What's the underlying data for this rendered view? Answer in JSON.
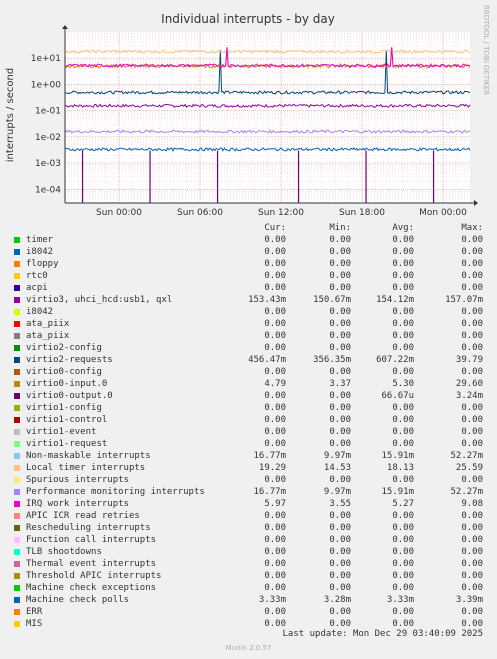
{
  "chart_data": {
    "type": "line",
    "title": "Individual interrupts - by day",
    "ylabel": "interrupts / second",
    "yscale": "log",
    "ylim": [
      3e-05,
      100
    ],
    "y_ticks": [
      {
        "value": 0.0001,
        "label": "1e-04"
      },
      {
        "value": 0.001,
        "label": "1e-03"
      },
      {
        "value": 0.01,
        "label": "1e-02"
      },
      {
        "value": 0.1,
        "label": "1e-01"
      },
      {
        "value": 1,
        "label": "1e+00"
      },
      {
        "value": 10,
        "label": "1e+01"
      }
    ],
    "xlim": [
      0,
      30
    ],
    "x_ticks": [
      {
        "value": 4,
        "label": "Sun 00:00"
      },
      {
        "value": 10,
        "label": "Sun 06:00"
      },
      {
        "value": 16,
        "label": "Sun 12:00"
      },
      {
        "value": 22,
        "label": "Sun 18:00"
      },
      {
        "value": 28,
        "label": "Mon 00:00"
      }
    ],
    "grid": true,
    "legend_headers": [
      "Cur:",
      "Min:",
      "Avg:",
      "Max:"
    ],
    "series": [
      {
        "name": "timer",
        "color": "#00cc00",
        "cur": "0.00",
        "min": "0.00",
        "avg": "0.00",
        "max": "0.00"
      },
      {
        "name": "i8042",
        "color": "#0066b3",
        "cur": "0.00",
        "min": "0.00",
        "avg": "0.00",
        "max": "0.00"
      },
      {
        "name": "floppy",
        "color": "#ff8000",
        "cur": "0.00",
        "min": "0.00",
        "avg": "0.00",
        "max": "0.00"
      },
      {
        "name": "rtc0",
        "color": "#ffcc00",
        "cur": "0.00",
        "min": "0.00",
        "avg": "0.00",
        "max": "0.00"
      },
      {
        "name": "acpi",
        "color": "#330099",
        "cur": "0.00",
        "min": "0.00",
        "avg": "0.00",
        "max": "0.00"
      },
      {
        "name": "virtio3, uhci_hcd:usb1, qxl",
        "color": "#990099",
        "cur": "153.43m",
        "min": "150.67m",
        "avg": "154.12m",
        "max": "157.07m",
        "level": 0.154
      },
      {
        "name": "i8042",
        "color": "#ccff00",
        "cur": "0.00",
        "min": "0.00",
        "avg": "0.00",
        "max": "0.00"
      },
      {
        "name": "ata_piix",
        "color": "#ff0000",
        "cur": "0.00",
        "min": "0.00",
        "avg": "0.00",
        "max": "0.00"
      },
      {
        "name": "ata_piix",
        "color": "#808080",
        "cur": "0.00",
        "min": "0.00",
        "avg": "0.00",
        "max": "0.00"
      },
      {
        "name": "virtio2-config",
        "color": "#008f00",
        "cur": "0.00",
        "min": "0.00",
        "avg": "0.00",
        "max": "0.00"
      },
      {
        "name": "virtio2-requests",
        "color": "#00487d",
        "cur": "456.47m",
        "min": "356.35m",
        "avg": "607.22m",
        "max": "39.79",
        "level": 0.5
      },
      {
        "name": "virtio0-config",
        "color": "#b35a00",
        "cur": "0.00",
        "min": "0.00",
        "avg": "0.00",
        "max": "0.00"
      },
      {
        "name": "virtio0-input.0",
        "color": "#b38f00",
        "cur": "4.79",
        "min": "3.37",
        "avg": "5.30",
        "max": "29.60",
        "level": 5.0
      },
      {
        "name": "virtio0-output.0",
        "color": "#6b006b",
        "cur": "0.00",
        "min": "0.00",
        "avg": "66.67u",
        "max": "3.24m"
      },
      {
        "name": "virtio1-config",
        "color": "#8fb300",
        "cur": "0.00",
        "min": "0.00",
        "avg": "0.00",
        "max": "0.00"
      },
      {
        "name": "virtio1-control",
        "color": "#b30000",
        "cur": "0.00",
        "min": "0.00",
        "avg": "0.00",
        "max": "0.00"
      },
      {
        "name": "virtio1-event",
        "color": "#bebebe",
        "cur": "0.00",
        "min": "0.00",
        "avg": "0.00",
        "max": "0.00"
      },
      {
        "name": "virtio1-request",
        "color": "#80ff80",
        "cur": "0.00",
        "min": "0.00",
        "avg": "0.00",
        "max": "0.00"
      },
      {
        "name": "Non-maskable interrupts",
        "color": "#80c9ff",
        "cur": "16.77m",
        "min": "9.97m",
        "avg": "15.91m",
        "max": "52.27m"
      },
      {
        "name": "Local timer interrupts",
        "color": "#ffc080",
        "cur": "19.29",
        "min": "14.53",
        "avg": "18.13",
        "max": "25.59",
        "level": 18.0
      },
      {
        "name": "Spurious interrupts",
        "color": "#ffe680",
        "cur": "0.00",
        "min": "0.00",
        "avg": "0.00",
        "max": "0.00"
      },
      {
        "name": "Performance monitoring interrupts",
        "color": "#aa80ff",
        "cur": "16.77m",
        "min": "9.97m",
        "avg": "15.91m",
        "max": "52.27m",
        "level": 0.016
      },
      {
        "name": "IRQ work interrupts",
        "color": "#ee00cc",
        "cur": "5.97",
        "min": "3.55",
        "avg": "5.27",
        "max": "9.08",
        "level": 5.3
      },
      {
        "name": "APIC ICR read retries",
        "color": "#ff8080",
        "cur": "0.00",
        "min": "0.00",
        "avg": "0.00",
        "max": "0.00"
      },
      {
        "name": "Rescheduling interrupts",
        "color": "#666600",
        "cur": "0.00",
        "min": "0.00",
        "avg": "0.00",
        "max": "0.00"
      },
      {
        "name": "Function call interrupts",
        "color": "#ffbfff",
        "cur": "0.00",
        "min": "0.00",
        "avg": "0.00",
        "max": "0.00"
      },
      {
        "name": "TLB shootdowns",
        "color": "#00ffcc",
        "cur": "0.00",
        "min": "0.00",
        "avg": "0.00",
        "max": "0.00"
      },
      {
        "name": "Thermal event interrupts",
        "color": "#cc6699",
        "cur": "0.00",
        "min": "0.00",
        "avg": "0.00",
        "max": "0.00"
      },
      {
        "name": "Threshold APIC interrupts",
        "color": "#999900",
        "cur": "0.00",
        "min": "0.00",
        "avg": "0.00",
        "max": "0.00"
      },
      {
        "name": "Machine check exceptions",
        "color": "#00cc00",
        "cur": "0.00",
        "min": "0.00",
        "avg": "0.00",
        "max": "0.00"
      },
      {
        "name": "Machine check polls",
        "color": "#0066b3",
        "cur": "3.33m",
        "min": "3.28m",
        "avg": "3.33m",
        "max": "3.39m",
        "level": 0.00333
      },
      {
        "name": "ERR",
        "color": "#ff8000",
        "cur": "0.00",
        "min": "0.00",
        "avg": "0.00",
        "max": "0.00"
      },
      {
        "name": "MIS",
        "color": "#ffcc00",
        "cur": "0.00",
        "min": "0.00",
        "avg": "0.00",
        "max": "0.00"
      }
    ]
  },
  "side_label": "RRDTOOL / TOBI OETIKER",
  "footer": {
    "last_update": "Last update: Mon Dec 29 03:40:09 2025",
    "munin": "Munin 2.0.57"
  }
}
